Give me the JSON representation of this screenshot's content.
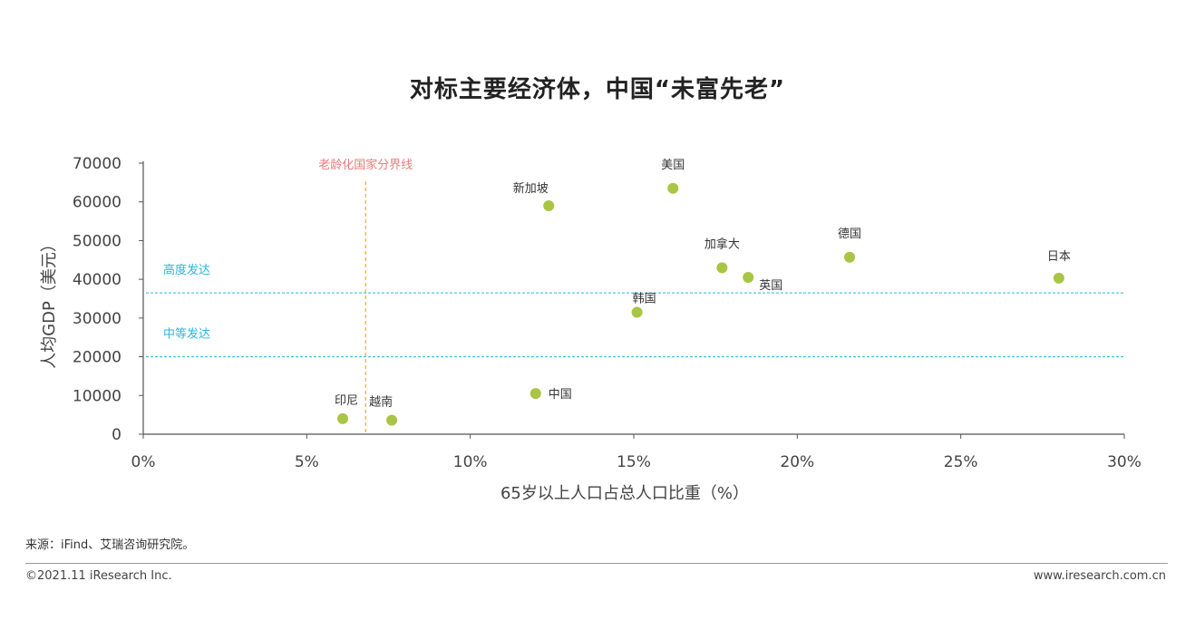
{
  "chart_data": {
    "type": "scatter",
    "title": "对标主要经济体，中国“未富先老”",
    "xlabel": "65岁以上人口占总人口比重（%）",
    "ylabel": "人均GDP（美元）",
    "xlim": [
      0,
      30
    ],
    "ylim": [
      0,
      70000
    ],
    "x_ticks": [
      0,
      5,
      10,
      15,
      20,
      25,
      30
    ],
    "x_tick_labels": [
      "0%",
      "5%",
      "10%",
      "15%",
      "20%",
      "25%",
      "30%"
    ],
    "y_ticks": [
      0,
      10000,
      20000,
      30000,
      40000,
      50000,
      60000,
      70000
    ],
    "y_tick_labels": [
      "0",
      "10000",
      "20000",
      "30000",
      "40000",
      "50000",
      "60000",
      "70000"
    ],
    "grid": false,
    "point_color": "#a8c545",
    "points": [
      {
        "name": "印尼",
        "x": 6.1,
        "y": 4000
      },
      {
        "name": "越南",
        "x": 7.6,
        "y": 3600
      },
      {
        "name": "中国",
        "x": 12.0,
        "y": 10500
      },
      {
        "name": "新加坡",
        "x": 12.4,
        "y": 59000
      },
      {
        "name": "韩国",
        "x": 15.1,
        "y": 31500
      },
      {
        "name": "美国",
        "x": 16.2,
        "y": 63500
      },
      {
        "name": "加拿大",
        "x": 17.7,
        "y": 43000
      },
      {
        "name": "英国",
        "x": 18.5,
        "y": 40500
      },
      {
        "name": "德国",
        "x": 21.6,
        "y": 45700
      },
      {
        "name": "日本",
        "x": 28.0,
        "y": 40300
      }
    ],
    "reference_lines": [
      {
        "axis": "x",
        "value": 6.8,
        "label": "老龄化国家分界线",
        "color": "#e8b800",
        "label_color": "#e87a7a"
      },
      {
        "axis": "y",
        "value": 36500,
        "label": "高度发达",
        "color": "#29b6d9",
        "label_color": "#29b6d9"
      },
      {
        "axis": "y",
        "value": 20000,
        "label": "中等发达",
        "color": "#29b6d9",
        "label_color": "#29b6d9"
      }
    ]
  },
  "footer": {
    "source": "来源：iFind、艾瑞咨询研究院。",
    "copyright": "©2021.11 iResearch Inc.",
    "website": "www.iresearch.com.cn"
  }
}
